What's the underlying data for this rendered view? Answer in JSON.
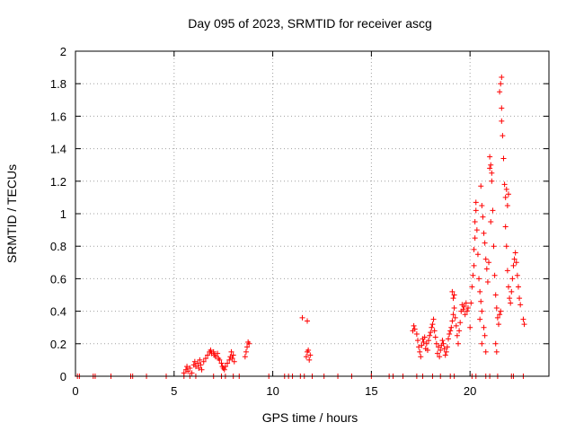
{
  "chart_data": {
    "type": "scatter",
    "title": "Day 095 of 2023, SRMTID for receiver ascg",
    "xlabel": "GPS time / hours",
    "ylabel": "SRMTID / TECUs",
    "xlim": [
      0,
      24
    ],
    "ylim": [
      0,
      2
    ],
    "xticks": [
      0,
      5,
      10,
      15,
      20
    ],
    "xtick_labels": [
      "0",
      "5",
      "10",
      "15",
      "20"
    ],
    "yticks": [
      0,
      0.2,
      0.4,
      0.6,
      0.8,
      1,
      1.2,
      1.4,
      1.6,
      1.8,
      2
    ],
    "ytick_labels": [
      "0",
      "0.2",
      "0.4",
      "0.6",
      "0.8",
      "1",
      "1.2",
      "1.4",
      "1.6",
      "1.8",
      "2"
    ],
    "grid": true,
    "marker": "+",
    "color": "#ff0000",
    "series": [
      {
        "name": "SRMTID",
        "points": [
          [
            0.1,
            0
          ],
          [
            0.2,
            0
          ],
          [
            0.9,
            0
          ],
          [
            1.0,
            0
          ],
          [
            1.8,
            0
          ],
          [
            2.8,
            0
          ],
          [
            2.9,
            0
          ],
          [
            3.6,
            0
          ],
          [
            4.6,
            0
          ],
          [
            5.5,
            0
          ],
          [
            5.8,
            0
          ],
          [
            6.1,
            0
          ],
          [
            7.0,
            0
          ],
          [
            7.4,
            0
          ],
          [
            7.6,
            0
          ],
          [
            8.0,
            0
          ],
          [
            8.3,
            0
          ],
          [
            9.8,
            0
          ],
          [
            10.6,
            0
          ],
          [
            10.8,
            0
          ],
          [
            11.0,
            0
          ],
          [
            11.4,
            0
          ],
          [
            11.6,
            0
          ],
          [
            12.0,
            0
          ],
          [
            12.6,
            0
          ],
          [
            13.3,
            0
          ],
          [
            14.0,
            0
          ],
          [
            15.0,
            0
          ],
          [
            15.9,
            0
          ],
          [
            16.1,
            0
          ],
          [
            16.6,
            0
          ],
          [
            17.3,
            0
          ],
          [
            17.6,
            0
          ],
          [
            18.1,
            0
          ],
          [
            18.5,
            0
          ],
          [
            19.0,
            0
          ],
          [
            19.2,
            0
          ],
          [
            20.1,
            0
          ],
          [
            20.3,
            0
          ],
          [
            20.8,
            0
          ],
          [
            21.0,
            0
          ],
          [
            21.4,
            0
          ],
          [
            22.1,
            0
          ],
          [
            22.2,
            0
          ],
          [
            22.7,
            0
          ],
          [
            5.5,
            0.02
          ],
          [
            5.6,
            0.04
          ],
          [
            5.65,
            0.06
          ],
          [
            5.7,
            0.03
          ],
          [
            5.8,
            0.05
          ],
          [
            5.9,
            0.02
          ],
          [
            6.0,
            0.07
          ],
          [
            6.05,
            0.09
          ],
          [
            6.1,
            0.06
          ],
          [
            6.2,
            0.08
          ],
          [
            6.25,
            0.05
          ],
          [
            6.3,
            0.1
          ],
          [
            6.35,
            0.07
          ],
          [
            6.4,
            0.04
          ],
          [
            6.5,
            0.09
          ],
          [
            6.6,
            0.11
          ],
          [
            6.7,
            0.13
          ],
          [
            6.8,
            0.15
          ],
          [
            6.85,
            0.16
          ],
          [
            6.9,
            0.14
          ],
          [
            7.0,
            0.15
          ],
          [
            7.05,
            0.13
          ],
          [
            7.1,
            0.12
          ],
          [
            7.2,
            0.14
          ],
          [
            7.25,
            0.11
          ],
          [
            7.3,
            0.1
          ],
          [
            7.4,
            0.08
          ],
          [
            7.45,
            0.06
          ],
          [
            7.5,
            0.05
          ],
          [
            7.55,
            0.04
          ],
          [
            7.6,
            0.06
          ],
          [
            7.7,
            0.08
          ],
          [
            7.8,
            0.1
          ],
          [
            7.85,
            0.12
          ],
          [
            7.9,
            0.15
          ],
          [
            7.95,
            0.11
          ],
          [
            8.0,
            0.13
          ],
          [
            8.05,
            0.09
          ],
          [
            8.6,
            0.12
          ],
          [
            8.65,
            0.15
          ],
          [
            8.7,
            0.18
          ],
          [
            8.75,
            0.21
          ],
          [
            8.8,
            0.2
          ],
          [
            11.5,
            0.36
          ],
          [
            11.75,
            0.34
          ],
          [
            11.7,
            0.12
          ],
          [
            11.75,
            0.15
          ],
          [
            11.8,
            0.16
          ],
          [
            11.85,
            0.1
          ],
          [
            11.9,
            0.13
          ],
          [
            17.1,
            0.28
          ],
          [
            17.15,
            0.31
          ],
          [
            17.2,
            0.29
          ],
          [
            17.3,
            0.26
          ],
          [
            17.35,
            0.22
          ],
          [
            17.4,
            0.18
          ],
          [
            17.45,
            0.15
          ],
          [
            17.5,
            0.12
          ],
          [
            17.55,
            0.19
          ],
          [
            17.6,
            0.23
          ],
          [
            17.65,
            0.21
          ],
          [
            17.7,
            0.24
          ],
          [
            17.75,
            0.17
          ],
          [
            17.8,
            0.2
          ],
          [
            17.85,
            0.16
          ],
          [
            17.9,
            0.22
          ],
          [
            17.95,
            0.25
          ],
          [
            18.0,
            0.27
          ],
          [
            18.05,
            0.3
          ],
          [
            18.1,
            0.32
          ],
          [
            18.15,
            0.35
          ],
          [
            18.2,
            0.28
          ],
          [
            18.25,
            0.24
          ],
          [
            18.3,
            0.2
          ],
          [
            18.35,
            0.14
          ],
          [
            18.4,
            0.18
          ],
          [
            18.45,
            0.12
          ],
          [
            18.5,
            0.16
          ],
          [
            18.55,
            0.19
          ],
          [
            18.6,
            0.22
          ],
          [
            18.65,
            0.2
          ],
          [
            18.7,
            0.17
          ],
          [
            18.75,
            0.13
          ],
          [
            18.8,
            0.15
          ],
          [
            18.85,
            0.18
          ],
          [
            18.9,
            0.23
          ],
          [
            18.95,
            0.26
          ],
          [
            19.0,
            0.28
          ],
          [
            19.05,
            0.3
          ],
          [
            19.1,
            0.34
          ],
          [
            19.15,
            0.38
          ],
          [
            19.2,
            0.42
          ],
          [
            19.25,
            0.36
          ],
          [
            19.3,
            0.31
          ],
          [
            19.35,
            0.25
          ],
          [
            19.4,
            0.2
          ],
          [
            19.45,
            0.28
          ],
          [
            19.5,
            0.33
          ],
          [
            19.55,
            0.4
          ],
          [
            19.6,
            0.44
          ],
          [
            19.65,
            0.41
          ],
          [
            19.7,
            0.43
          ],
          [
            19.75,
            0.38
          ],
          [
            19.8,
            0.45
          ],
          [
            19.85,
            0.4
          ],
          [
            19.9,
            0.42
          ],
          [
            19.1,
            0.52
          ],
          [
            19.15,
            0.48
          ],
          [
            19.2,
            0.5
          ],
          [
            20.0,
            0.3
          ],
          [
            20.05,
            0.45
          ],
          [
            20.1,
            0.55
          ],
          [
            20.15,
            0.62
          ],
          [
            20.2,
            0.68
          ],
          [
            20.2,
            0.78
          ],
          [
            20.25,
            0.85
          ],
          [
            20.25,
            0.95
          ],
          [
            20.3,
            1.02
          ],
          [
            20.3,
            1.07
          ],
          [
            20.35,
            0.9
          ],
          [
            20.4,
            0.75
          ],
          [
            20.45,
            0.6
          ],
          [
            20.5,
            0.52
          ],
          [
            20.55,
            0.46
          ],
          [
            20.6,
            0.4
          ],
          [
            20.55,
            1.17
          ],
          [
            20.6,
            1.05
          ],
          [
            20.65,
            0.98
          ],
          [
            20.7,
            0.88
          ],
          [
            20.75,
            0.82
          ],
          [
            20.8,
            0.72
          ],
          [
            20.85,
            0.66
          ],
          [
            20.9,
            0.58
          ],
          [
            20.95,
            0.7
          ],
          [
            20.6,
            0.2
          ],
          [
            20.7,
            0.3
          ],
          [
            20.75,
            0.25
          ],
          [
            20.8,
            0.15
          ],
          [
            20.5,
            0.35
          ],
          [
            21.0,
            1.35
          ],
          [
            21.0,
            1.28
          ],
          [
            21.05,
            1.3
          ],
          [
            21.1,
            1.2
          ],
          [
            21.1,
            1.25
          ],
          [
            21.05,
            0.95
          ],
          [
            21.15,
            1.02
          ],
          [
            21.2,
            0.8
          ],
          [
            21.25,
            0.62
          ],
          [
            21.3,
            0.5
          ],
          [
            21.35,
            0.42
          ],
          [
            21.4,
            0.36
          ],
          [
            21.45,
            0.32
          ],
          [
            21.5,
            0.38
          ],
          [
            21.55,
            0.4
          ],
          [
            21.3,
            0.2
          ],
          [
            21.35,
            0.15
          ],
          [
            21.5,
            1.75
          ],
          [
            21.55,
            1.8
          ],
          [
            21.6,
            1.65
          ],
          [
            21.6,
            1.57
          ],
          [
            21.65,
            1.48
          ],
          [
            21.7,
            1.34
          ],
          [
            21.75,
            1.18
          ],
          [
            21.8,
            1.1
          ],
          [
            21.85,
            1.15
          ],
          [
            21.9,
            1.05
          ],
          [
            21.95,
            1.12
          ],
          [
            21.8,
            0.92
          ],
          [
            21.85,
            0.8
          ],
          [
            21.9,
            0.65
          ],
          [
            21.95,
            0.55
          ],
          [
            22.0,
            0.48
          ],
          [
            22.05,
            0.45
          ],
          [
            22.1,
            0.52
          ],
          [
            22.15,
            0.6
          ],
          [
            22.2,
            0.68
          ],
          [
            22.25,
            0.72
          ],
          [
            22.3,
            0.76
          ],
          [
            22.35,
            0.7
          ],
          [
            22.4,
            0.62
          ],
          [
            22.45,
            0.55
          ],
          [
            22.5,
            0.48
          ],
          [
            22.55,
            0.44
          ],
          [
            21.6,
            1.84
          ],
          [
            22.7,
            0.35
          ],
          [
            22.75,
            0.32
          ]
        ]
      }
    ]
  }
}
